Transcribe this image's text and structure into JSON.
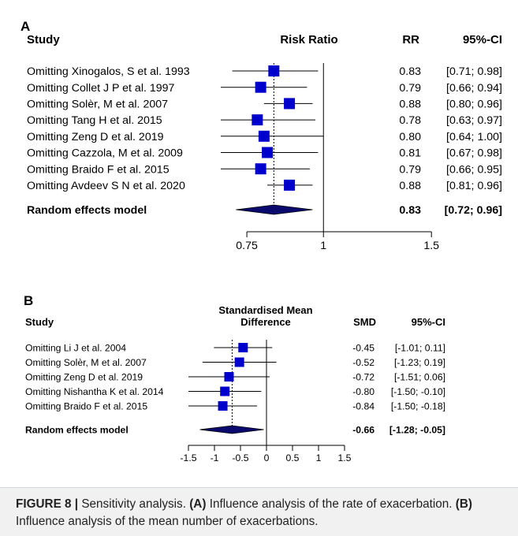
{
  "figure_caption": {
    "label": "FIGURE 8 |",
    "lead": " Sensitivity analysis. ",
    "a_tag": "(A)",
    "a_text": " Influence analysis of the rate of exacerbation. ",
    "b_tag": "(B)",
    "b_text": " Influence analysis of the mean number of exacerbations."
  },
  "chart_data": [
    {
      "type": "forest",
      "panel_label": "A",
      "headers": {
        "study": "Study",
        "effect": "Risk Ratio",
        "estimate": "RR",
        "ci": "95%-CI"
      },
      "scale": "log",
      "xlim": [
        0.68,
        1.6
      ],
      "x_ticks": [
        0.75,
        1,
        1.5
      ],
      "x_tick_labels": [
        "0.75",
        "1",
        "1.5"
      ],
      "null_value": 1,
      "pooled_line_value": 0.83,
      "marker_color": "#0000cc",
      "studies": [
        {
          "label": "Omitting Xinogalos, S et al.  1993",
          "est": 0.83,
          "lo": 0.71,
          "hi": 0.98,
          "est_text": "0.83",
          "ci_text": "[0.71; 0.98]"
        },
        {
          "label": "Omitting Collet J P et al.  1997",
          "est": 0.79,
          "lo": 0.66,
          "hi": 0.94,
          "est_text": "0.79",
          "ci_text": "[0.66; 0.94]"
        },
        {
          "label": "Omitting Solèr, M et al. 2007",
          "est": 0.88,
          "lo": 0.8,
          "hi": 0.96,
          "est_text": "0.88",
          "ci_text": "[0.80; 0.96]"
        },
        {
          "label": "Omitting Tang H et al. 2015",
          "est": 0.78,
          "lo": 0.63,
          "hi": 0.97,
          "est_text": "0.78",
          "ci_text": "[0.63; 0.97]"
        },
        {
          "label": "Omitting Zeng D et al.  2019",
          "est": 0.8,
          "lo": 0.64,
          "hi": 1.0,
          "est_text": "0.80",
          "ci_text": "[0.64; 1.00]"
        },
        {
          "label": "Omitting Cazzola, M et al. 2009",
          "est": 0.81,
          "lo": 0.67,
          "hi": 0.98,
          "est_text": "0.81",
          "ci_text": "[0.67; 0.98]"
        },
        {
          "label": "Omitting Braido F et al.  2015",
          "est": 0.79,
          "lo": 0.66,
          "hi": 0.95,
          "est_text": "0.79",
          "ci_text": "[0.66; 0.95]"
        },
        {
          "label": "Omitting Avdeev S N et al.  2020",
          "est": 0.88,
          "lo": 0.81,
          "hi": 0.96,
          "est_text": "0.88",
          "ci_text": "[0.81; 0.96]"
        }
      ],
      "pooled": {
        "label": "Random effects model",
        "est": 0.83,
        "lo": 0.72,
        "hi": 0.96,
        "est_text": "0.83",
        "ci_text": "[0.72; 0.96]"
      }
    },
    {
      "type": "forest",
      "panel_label": "B",
      "headers": {
        "study": "Study",
        "effect_line1": "Standardised Mean",
        "effect_line2": "Difference",
        "estimate": "SMD",
        "ci": "95%-CI"
      },
      "scale": "linear",
      "xlim": [
        -1.5,
        1.5
      ],
      "x_ticks": [
        -1.5,
        -1,
        -0.5,
        0,
        0.5,
        1,
        1.5
      ],
      "x_tick_labels": [
        "-1.5",
        "-1",
        "-0.5",
        "0",
        "0.5",
        "1",
        "1.5"
      ],
      "null_value": 0,
      "pooled_line_value": -0.66,
      "marker_color": "#0000cc",
      "studies": [
        {
          "label": "Omitting Li J et al.  2004",
          "est": -0.45,
          "lo": -1.01,
          "hi": 0.11,
          "est_text": "-0.45",
          "ci_text": "[-1.01;  0.11]"
        },
        {
          "label": "Omitting Solèr, M et al. 2007",
          "est": -0.52,
          "lo": -1.23,
          "hi": 0.19,
          "est_text": "-0.52",
          "ci_text": "[-1.23;  0.19]"
        },
        {
          "label": "Omitting Zeng D et al.  2019",
          "est": -0.72,
          "lo": -1.51,
          "hi": 0.06,
          "est_text": "-0.72",
          "ci_text": "[-1.51;  0.06]"
        },
        {
          "label": "Omitting Nishantha K et al.  2014",
          "est": -0.8,
          "lo": -1.5,
          "hi": -0.1,
          "est_text": "-0.80",
          "ci_text": "[-1.50; -0.10]"
        },
        {
          "label": "Omitting Braido F et al.  2015",
          "est": -0.84,
          "lo": -1.5,
          "hi": -0.18,
          "est_text": "-0.84",
          "ci_text": "[-1.50; -0.18]"
        }
      ],
      "pooled": {
        "label": "Random effects model",
        "est": -0.66,
        "lo": -1.28,
        "hi": -0.05,
        "est_text": "-0.66",
        "ci_text": "[-1.28; -0.05]"
      }
    }
  ]
}
